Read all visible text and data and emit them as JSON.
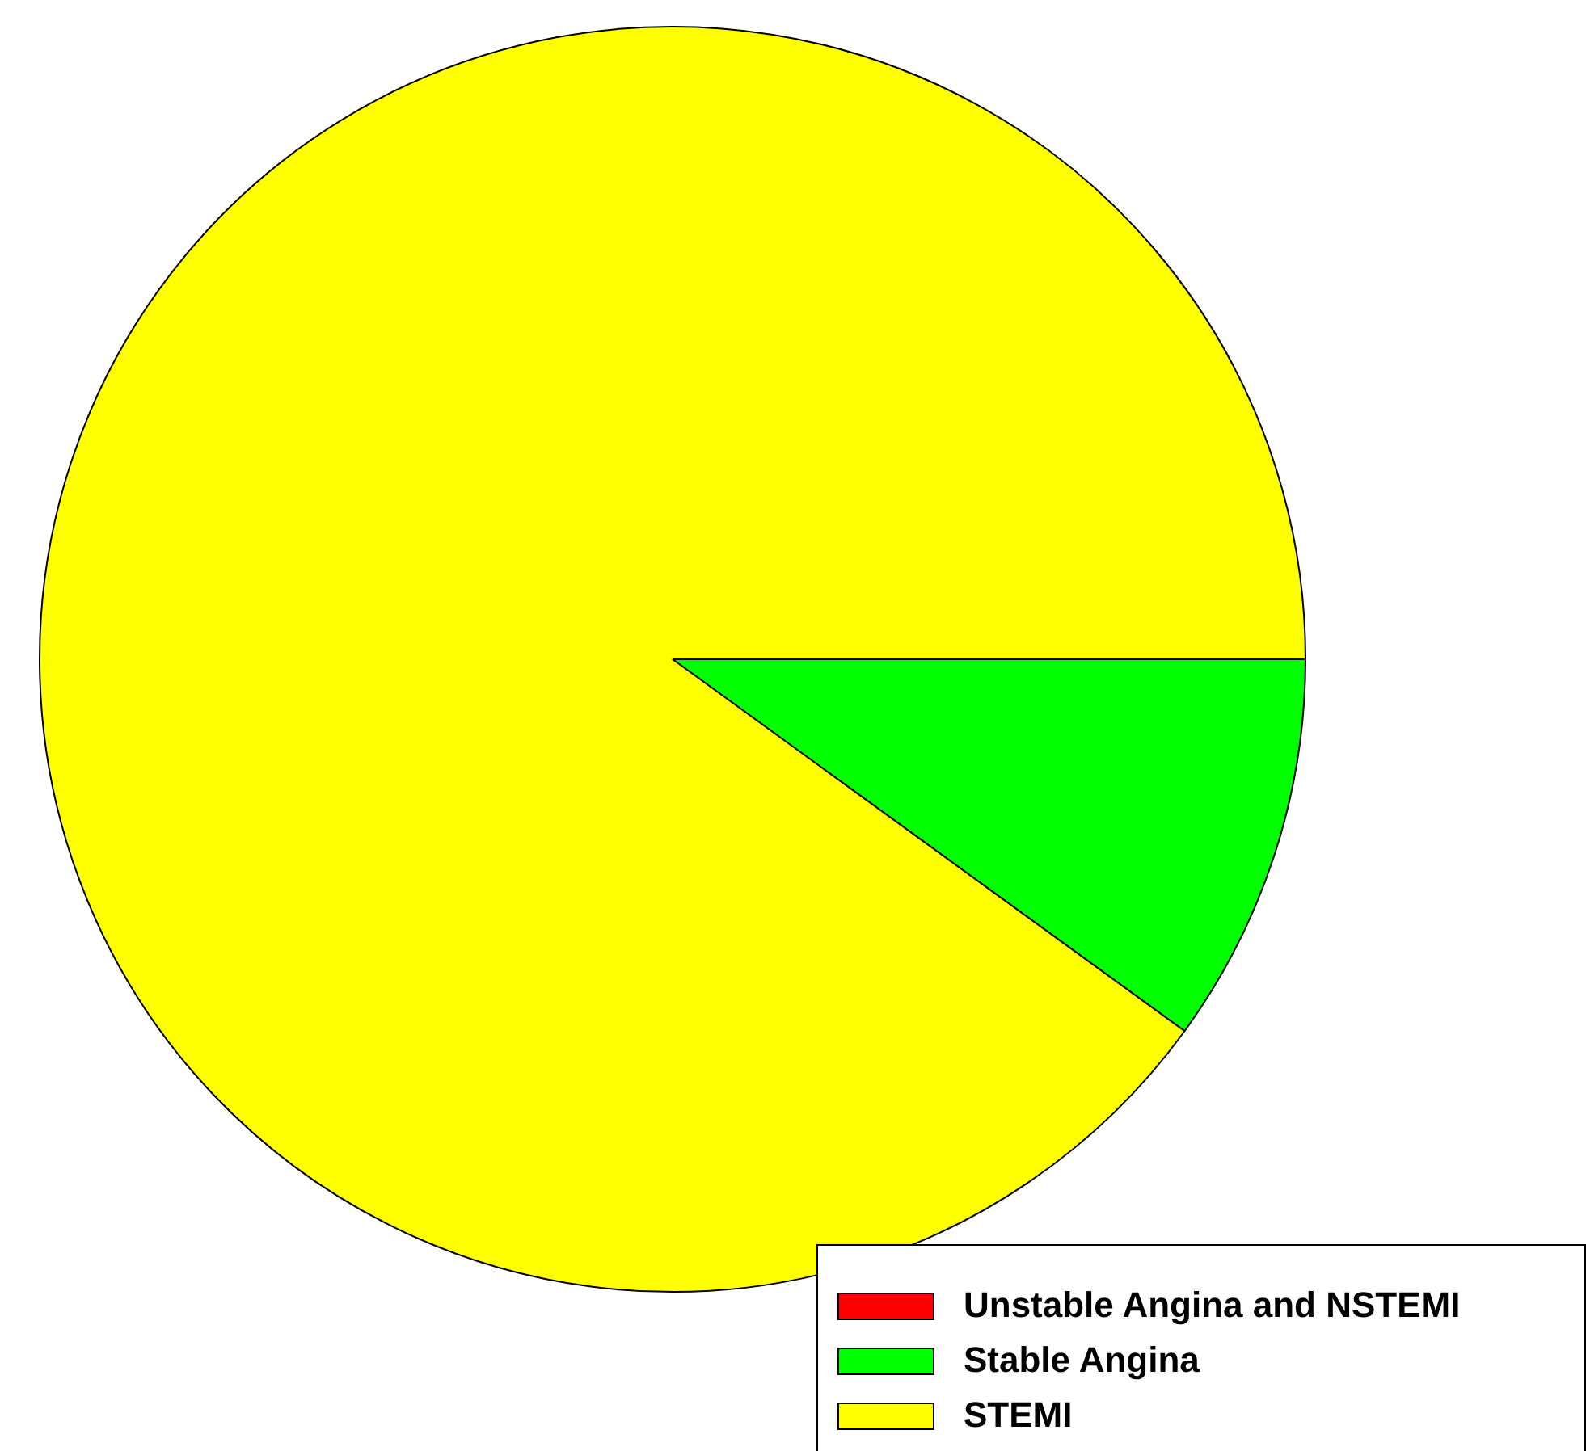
{
  "chart_data": {
    "type": "pie",
    "categories": [
      "Unstable Angina and NSTEMI",
      "Stable Angina",
      "STEMI"
    ],
    "values": [
      0,
      10,
      90
    ],
    "colors": [
      "#ff0000",
      "#00ff00",
      "#ffff00"
    ],
    "legend": "bottom right"
  }
}
